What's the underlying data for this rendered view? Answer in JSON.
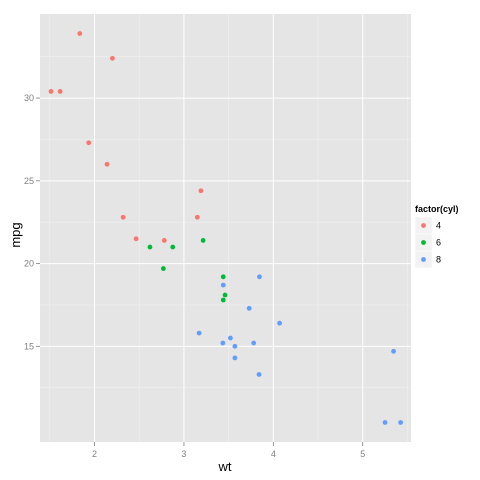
{
  "chart_data": {
    "type": "scatter",
    "title": "",
    "xlabel": "wt",
    "ylabel": "mpg",
    "xlim": [
      1.39,
      5.54
    ],
    "ylim": [
      9.22,
      35.08
    ],
    "x_ticks": [
      2,
      3,
      4,
      5
    ],
    "y_ticks": [
      15,
      20,
      25,
      30
    ],
    "grid": true,
    "legend": {
      "title": "factor(cyl)",
      "placement": "right"
    },
    "series": [
      {
        "name": "4",
        "color": "#F8766D",
        "points": [
          {
            "x": 2.32,
            "y": 22.8
          },
          {
            "x": 3.19,
            "y": 24.4
          },
          {
            "x": 3.15,
            "y": 22.8
          },
          {
            "x": 2.2,
            "y": 32.4
          },
          {
            "x": 1.615,
            "y": 30.4
          },
          {
            "x": 1.835,
            "y": 33.9
          },
          {
            "x": 2.465,
            "y": 21.5
          },
          {
            "x": 1.935,
            "y": 27.3
          },
          {
            "x": 2.14,
            "y": 26.0
          },
          {
            "x": 1.513,
            "y": 30.4
          },
          {
            "x": 2.78,
            "y": 21.4
          }
        ]
      },
      {
        "name": "6",
        "color": "#00BA38",
        "points": [
          {
            "x": 2.62,
            "y": 21.0
          },
          {
            "x": 2.875,
            "y": 21.0
          },
          {
            "x": 3.215,
            "y": 21.4
          },
          {
            "x": 3.46,
            "y": 18.1
          },
          {
            "x": 3.44,
            "y": 19.2
          },
          {
            "x": 3.44,
            "y": 17.8
          },
          {
            "x": 2.77,
            "y": 19.7
          }
        ]
      },
      {
        "name": "8",
        "color": "#619CFF",
        "points": [
          {
            "x": 3.44,
            "y": 18.7
          },
          {
            "x": 3.57,
            "y": 14.3
          },
          {
            "x": 4.07,
            "y": 16.4
          },
          {
            "x": 3.73,
            "y": 17.3
          },
          {
            "x": 3.78,
            "y": 15.2
          },
          {
            "x": 5.25,
            "y": 10.4
          },
          {
            "x": 5.424,
            "y": 10.4
          },
          {
            "x": 5.345,
            "y": 14.7
          },
          {
            "x": 3.52,
            "y": 15.5
          },
          {
            "x": 3.435,
            "y": 15.2
          },
          {
            "x": 3.84,
            "y": 13.3
          },
          {
            "x": 3.845,
            "y": 19.2
          },
          {
            "x": 3.17,
            "y": 15.8
          },
          {
            "x": 3.57,
            "y": 15.0
          }
        ]
      }
    ]
  }
}
